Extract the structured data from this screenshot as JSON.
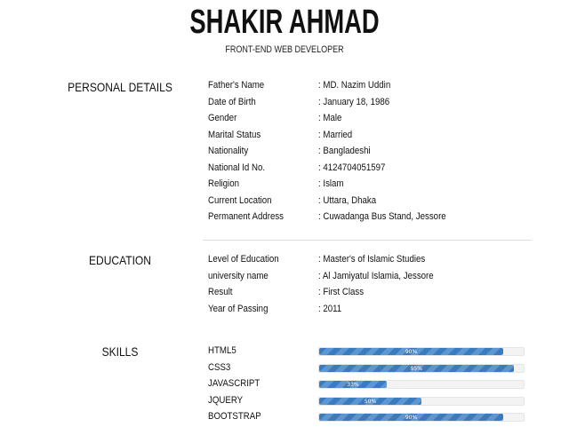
{
  "header": {
    "name": "SHAKIR AHMAD",
    "role": "FRONT-END WEB DEVELOPER"
  },
  "personal": {
    "title": "PERSONAL DETAILS",
    "rows": [
      {
        "label": "Father's Name",
        "value": ": MD. Nazim Uddin"
      },
      {
        "label": "Date of Birth",
        "value": ": January 18, 1986"
      },
      {
        "label": "Gender",
        "value": ": Male"
      },
      {
        "label": "Marital Status",
        "value": ": Married"
      },
      {
        "label": "Nationality",
        "value": ": Bangladeshi"
      },
      {
        "label": "National Id No.",
        "value": ": 4124704051597"
      },
      {
        "label": "Religion",
        "value": ": Islam"
      },
      {
        "label": "Current Location",
        "value": ": Uttara, Dhaka"
      },
      {
        "label": "Permanent Address",
        "value": ": Cuwadanga Bus Stand, Jessore"
      }
    ]
  },
  "education": {
    "title": "EDUCATION",
    "rows": [
      {
        "label": "Level of Education",
        "value": ": Master's of Islamic Studies"
      },
      {
        "label": "university name",
        "value": ": Al Jamiyatul Islamia, Jessore"
      },
      {
        "label": "Result",
        "value": ": First Class"
      },
      {
        "label": "Year of Passing",
        "value": ": 2011"
      }
    ]
  },
  "skills": {
    "title": "SKILLS",
    "items": [
      {
        "label": "HTML5",
        "percent": 90,
        "percent_label": "90%"
      },
      {
        "label": "CSS3",
        "percent": 95,
        "percent_label": "95%"
      },
      {
        "label": "JAVASCRIPT",
        "percent": 33,
        "percent_label": "33%"
      },
      {
        "label": "JQUERY",
        "percent": 50,
        "percent_label": "50%"
      },
      {
        "label": "BOOTSTRAP",
        "percent": 90,
        "percent_label": "90%"
      }
    ],
    "bar_color": "#3a7bbf"
  }
}
